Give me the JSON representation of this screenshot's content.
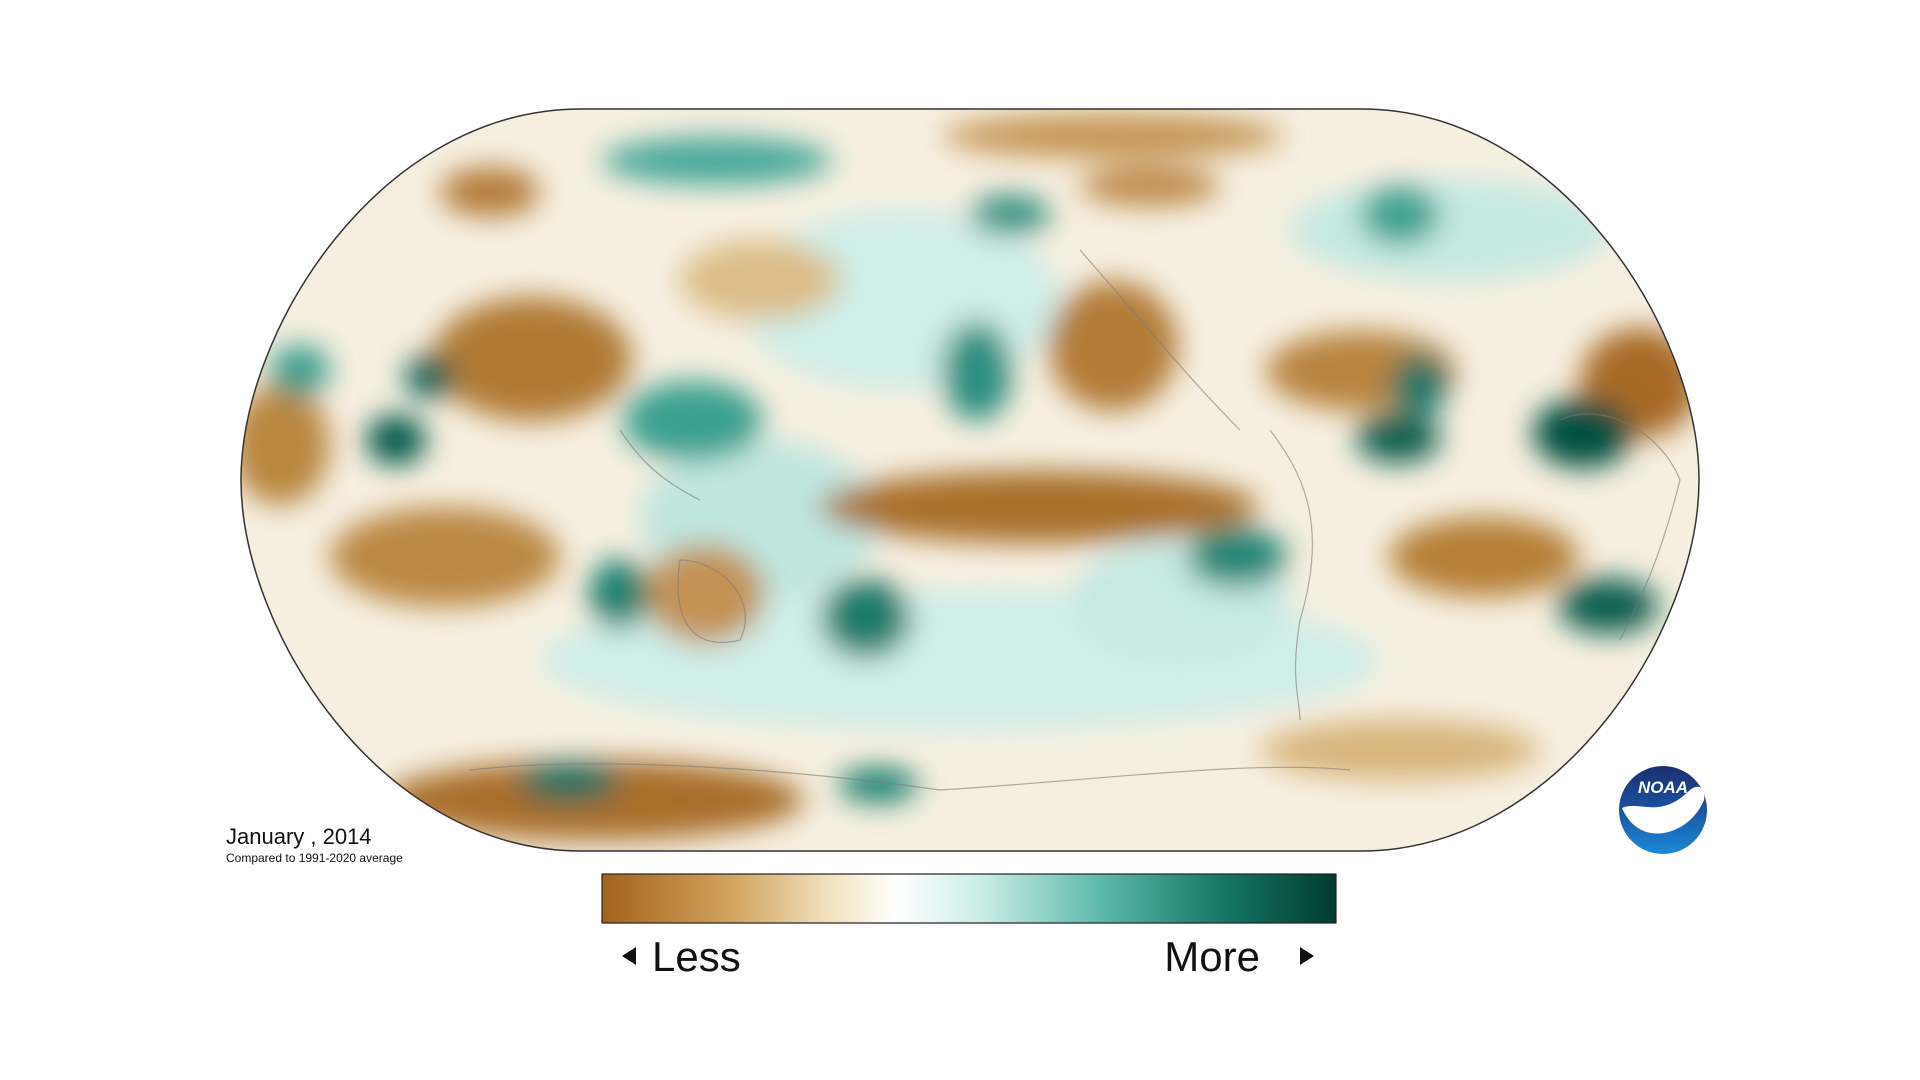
{
  "map": {
    "title": "January , 2014",
    "subtitle": "Compared to 1991-2020 average"
  },
  "legend": {
    "low_label": "Less",
    "high_label": "More"
  },
  "logo": {
    "text": "NOAA"
  }
}
